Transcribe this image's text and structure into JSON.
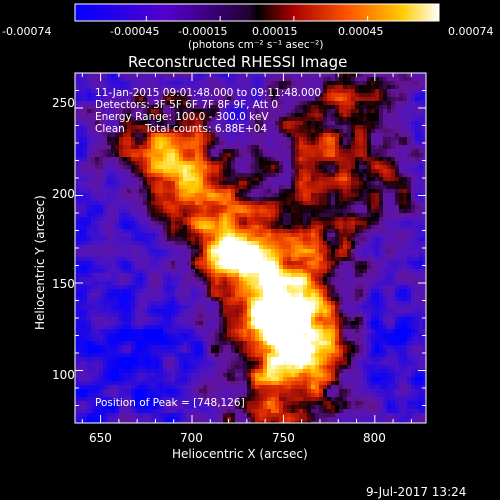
{
  "chart_data": {
    "type": "heatmap",
    "title": "Reconstructed RHESSI Image",
    "xlabel": "Heliocentric X (arcsec)",
    "ylabel": "Heliocentric Y (arcsec)",
    "xlim": [
      636,
      828
    ],
    "ylim": [
      70,
      270
    ],
    "xticks": [
      650,
      700,
      750,
      800
    ],
    "yticks": [
      100,
      150,
      200,
      250
    ],
    "colorbar": {
      "ticks": [
        "-0.00074",
        "-0.00045",
        "-0.00015",
        "0.00015",
        "0.00045",
        "0.00074"
      ],
      "range": [
        -0.00074,
        0.00074
      ],
      "unit_label": "(photons cm⁻² s⁻¹ asec⁻²)",
      "colors": [
        "#0000ff",
        "#4400dd",
        "#7700aa",
        "#000000",
        "#aa1100",
        "#ff5500",
        "#ffbb00",
        "#ffffff"
      ]
    },
    "annotations": {
      "time_range": "11-Jan-2015 09:01:48.000 to 09:11:48.000",
      "detectors": "Detectors: 3F 5F 6F 7F 8F 9F, Att 0",
      "energy_range": "Energy Range: 100.0 - 300.0 keV",
      "algorithm": "Clean",
      "total_counts": "Total counts: 6.88E+04",
      "peak": "Position of Peak = [748,126]"
    },
    "peak_position": [
      748,
      126
    ]
  },
  "footer": {
    "date": "9-Jul-2017 13:24"
  }
}
